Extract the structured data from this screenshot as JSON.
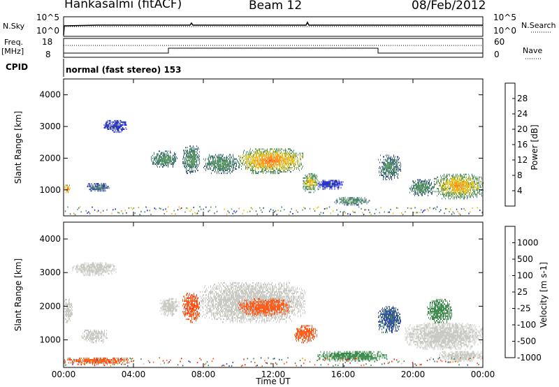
{
  "header": {
    "station": "Hankasalmi (fitACF)",
    "beam": "Beam 12",
    "date": "08/Feb/2012"
  },
  "noise_panel": {
    "left_label": "N.Sky",
    "right_label": "N.Search",
    "left_ticks": [
      "10^5",
      "10^0"
    ],
    "right_ticks": [
      "10^5",
      "10^0"
    ]
  },
  "freq_panel": {
    "left_label_line1": "Freq.",
    "left_label_line2": "[MHz]",
    "left_ticks": [
      "18",
      "8"
    ],
    "right_label": "Nave",
    "right_ticks": [
      "60",
      "0"
    ]
  },
  "cpid": {
    "label": "CPID",
    "mode": "normal (fast stereo) 153"
  },
  "colors": {
    "power_scale": [
      "#1a1aff",
      "#2b3a9f",
      "#3f7a6a",
      "#5a9a5a",
      "#e6c21a",
      "#ff8c1a",
      "#ff5a1a",
      "#ff1a1a"
    ],
    "velocity_scale": [
      "#ff1a1a",
      "#ff5a1a",
      "#ff9a1a",
      "#c9c9c3",
      "#c9c9c3",
      "#66cc33",
      "#3a8a4a",
      "#2b4aa0"
    ],
    "ground_scatter": "#c9c9c3"
  },
  "chart_data": [
    {
      "type": "heatmap",
      "parameter": "power",
      "xlabel": "",
      "ylabel": "Slant Range [km]",
      "xlim": [
        0,
        24
      ],
      "ylim": [
        180,
        4500
      ],
      "yticks": [
        "4000",
        "3000",
        "2000",
        "1000"
      ],
      "xticks": [
        "00:00",
        "04:00",
        "08:00",
        "12:00",
        "16:00",
        "20:00",
        "00:00"
      ],
      "colorbar": {
        "label": "Power [dB]",
        "ticks": [
          "28",
          "24",
          "20",
          "16",
          "12",
          "8",
          "4"
        ]
      },
      "features": [
        {
          "t0": 0.0,
          "t1": 0.4,
          "r0": 850,
          "r1": 1150,
          "level": 26
        },
        {
          "t0": 1.3,
          "t1": 2.6,
          "r0": 900,
          "r1": 1200,
          "level": 10
        },
        {
          "t0": 2.3,
          "t1": 3.6,
          "r0": 2800,
          "r1": 3200,
          "level": 6
        },
        {
          "t0": 5.0,
          "t1": 6.5,
          "r0": 1700,
          "r1": 2200,
          "level": 14
        },
        {
          "t0": 6.8,
          "t1": 7.8,
          "r0": 1500,
          "r1": 2400,
          "level": 14
        },
        {
          "t0": 8.0,
          "t1": 10.0,
          "r0": 1500,
          "r1": 2100,
          "level": 14
        },
        {
          "t0": 10.0,
          "t1": 13.7,
          "r0": 1500,
          "r1": 2300,
          "level": 24
        },
        {
          "t0": 13.7,
          "t1": 14.6,
          "r0": 900,
          "r1": 1500,
          "level": 20
        },
        {
          "t0": 14.5,
          "t1": 16.0,
          "r0": 1000,
          "r1": 1300,
          "level": 6
        },
        {
          "t0": 15.5,
          "t1": 17.5,
          "r0": 500,
          "r1": 750,
          "level": 14
        },
        {
          "t0": 18.0,
          "t1": 19.3,
          "r0": 1300,
          "r1": 2100,
          "level": 12
        },
        {
          "t0": 19.8,
          "t1": 21.2,
          "r0": 800,
          "r1": 1300,
          "level": 14
        },
        {
          "t0": 21.2,
          "t1": 24.0,
          "r0": 700,
          "r1": 1500,
          "level": 22
        }
      ]
    },
    {
      "type": "heatmap",
      "parameter": "velocity",
      "xlabel": "Time UT",
      "ylabel": "Slant Range [km]",
      "xlim": [
        0,
        24
      ],
      "ylim": [
        180,
        4500
      ],
      "yticks": [
        "4000",
        "3000",
        "2000",
        "1000"
      ],
      "xticks": [
        "00:00",
        "04:00",
        "08:00",
        "12:00",
        "16:00",
        "20:00",
        "00:00"
      ],
      "colorbar": {
        "label": "Velocity [m s-1]",
        "ticks": [
          "1000",
          "500",
          "100",
          "25",
          "-25",
          "-100",
          "-500",
          "-1000"
        ]
      },
      "features": [
        {
          "t0": 0.0,
          "t1": 0.5,
          "r0": 1500,
          "r1": 2200,
          "level": 0
        },
        {
          "t0": 0.5,
          "t1": 3.0,
          "r0": 2900,
          "r1": 3300,
          "level": 0
        },
        {
          "t0": 1.0,
          "t1": 2.5,
          "r0": 900,
          "r1": 1300,
          "level": 0
        },
        {
          "t0": 0.0,
          "t1": 4.0,
          "r0": 250,
          "r1": 450,
          "level": -300
        },
        {
          "t0": 5.5,
          "t1": 6.6,
          "r0": 1700,
          "r1": 2200,
          "level": 0
        },
        {
          "t0": 6.8,
          "t1": 7.8,
          "r0": 1500,
          "r1": 2400,
          "level": -400
        },
        {
          "t0": 7.8,
          "t1": 13.8,
          "r0": 1500,
          "r1": 2700,
          "level": 0
        },
        {
          "t0": 10.0,
          "t1": 13.0,
          "r0": 1700,
          "r1": 2200,
          "level": -150
        },
        {
          "t0": 13.2,
          "t1": 14.5,
          "r0": 900,
          "r1": 1400,
          "level": -200
        },
        {
          "t0": 14.5,
          "t1": 18.5,
          "r0": 350,
          "r1": 650,
          "level": 200
        },
        {
          "t0": 18.0,
          "t1": 19.3,
          "r0": 1200,
          "r1": 2000,
          "level": 600
        },
        {
          "t0": 19.5,
          "t1": 24.0,
          "r0": 700,
          "r1": 1500,
          "level": 0
        },
        {
          "t0": 20.8,
          "t1": 22.2,
          "r0": 1500,
          "r1": 2200,
          "level": 150
        },
        {
          "t0": 21.5,
          "t1": 24.0,
          "r0": 350,
          "r1": 650,
          "level": 0
        }
      ]
    }
  ]
}
